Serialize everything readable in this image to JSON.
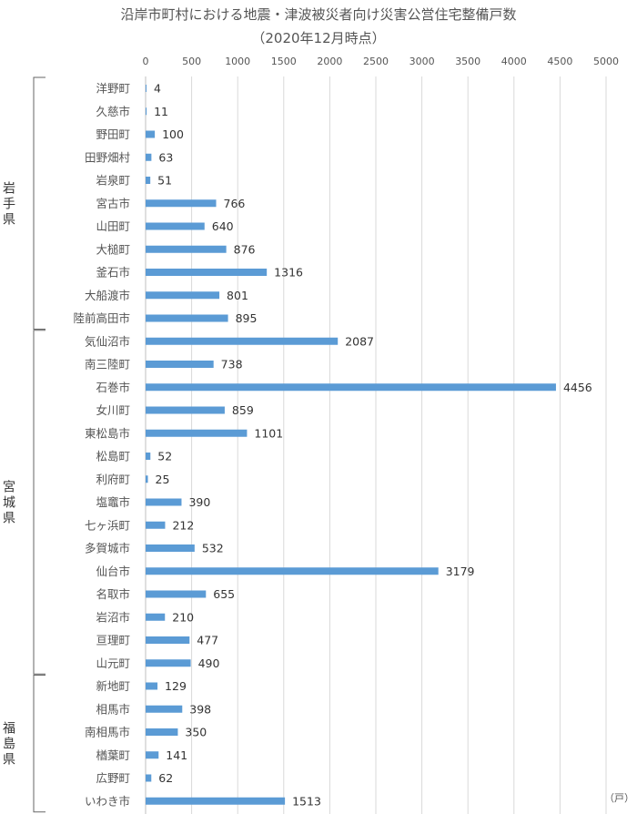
{
  "title": "沿岸市町村における地震・津波被災者向け災害公営住宅整備戸数",
  "subtitle": "（2020年12月時点）",
  "chart_data": {
    "type": "bar",
    "orientation": "horizontal",
    "title": "沿岸市町村における地震・津波被災者向け災害公営住宅整備戸数",
    "subtitle": "（2020年12月時点）",
    "unit": "（戸）",
    "xlim": [
      0,
      5000
    ],
    "xticks": [
      "0",
      "500",
      "1000",
      "1500",
      "2000",
      "2500",
      "3000",
      "3500",
      "4000",
      "4500",
      "5000"
    ],
    "xtick_values": [
      0,
      500,
      1000,
      1500,
      2000,
      2500,
      3000,
      3500,
      4000,
      4500,
      5000
    ],
    "grid": "vertical",
    "bar_color": "#5B9BD5",
    "categories": [
      "洋野町",
      "久慈市",
      "野田町",
      "田野畑村",
      "岩泉町",
      "宮古市",
      "山田町",
      "大槌町",
      "釜石市",
      "大船渡市",
      "陸前高田市",
      "気仙沼市",
      "南三陸町",
      "石巻市",
      "女川町",
      "東松島市",
      "松島町",
      "利府町",
      "塩竈市",
      "七ヶ浜町",
      "多賀城市",
      "仙台市",
      "名取市",
      "岩沼市",
      "亘理町",
      "山元町",
      "新地町",
      "相馬市",
      "南相馬市",
      "楢葉町",
      "広野町",
      "いわき市"
    ],
    "values": [
      4,
      11,
      100,
      63,
      51,
      766,
      640,
      876,
      1316,
      801,
      895,
      2087,
      738,
      4456,
      859,
      1101,
      52,
      25,
      390,
      212,
      532,
      3179,
      655,
      210,
      477,
      490,
      129,
      398,
      350,
      141,
      62,
      1513
    ],
    "value_labels": [
      "4",
      "11",
      "100",
      "63",
      "51",
      "766",
      "640",
      "876",
      "1316",
      "801",
      "895",
      "2087",
      "738",
      "4456",
      "859",
      "1101",
      "52",
      "25",
      "390",
      "212",
      "532",
      "3179",
      "655",
      "210",
      "477",
      "490",
      "129",
      "398",
      "350",
      "141",
      "62",
      "1513"
    ],
    "groups": [
      {
        "name": "岩手県",
        "first": 0,
        "last": 10
      },
      {
        "name": "宮城県",
        "first": 11,
        "last": 25
      },
      {
        "name": "福島県",
        "first": 26,
        "last": 31
      }
    ]
  }
}
